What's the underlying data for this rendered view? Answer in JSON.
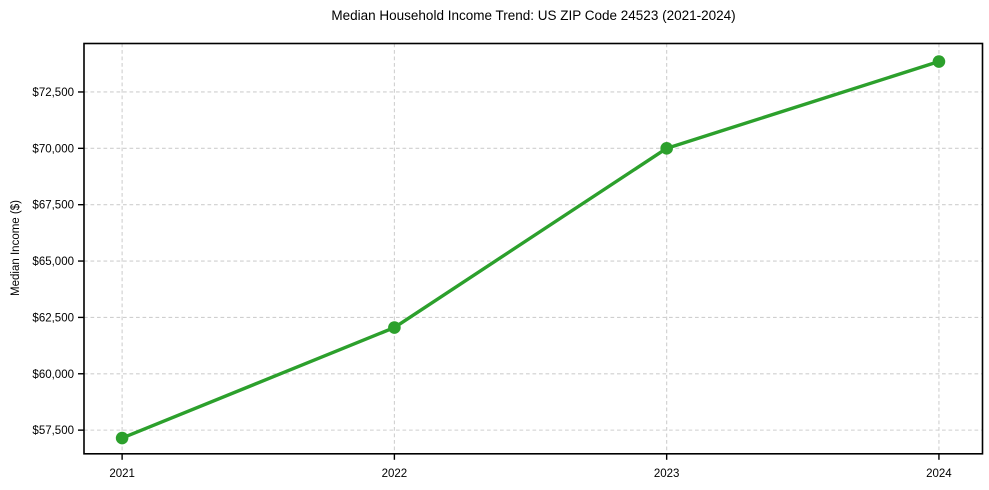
{
  "chart_data": {
    "type": "line",
    "title": "Median Household Income Trend: US ZIP Code 24523 (2021-2024)",
    "xlabel": "",
    "ylabel": "Median Income ($)",
    "x": [
      2021,
      2022,
      2023,
      2024
    ],
    "values": [
      57150,
      62050,
      70000,
      73850
    ],
    "xticks": [
      2021,
      2022,
      2023,
      2024
    ],
    "xtick_labels": [
      "2021",
      "2022",
      "2023",
      "2024"
    ],
    "yticks": [
      57500,
      60000,
      62500,
      65000,
      67500,
      70000,
      72500
    ],
    "ytick_labels": [
      "$57,500",
      "$60,000",
      "$62,500",
      "$65,000",
      "$67,500",
      "$70,000",
      "$72,500"
    ],
    "xlim": [
      2020.86,
      2024.16
    ],
    "ylim": [
      56450,
      74650
    ],
    "grid": true,
    "grid_style": "dashed",
    "legend": false,
    "line_color": "#2ca02c",
    "marker": "circle",
    "grid_color": "#cfcfcf",
    "spine_color": "#000000",
    "text_color": "#000000",
    "background": "#ffffff"
  }
}
